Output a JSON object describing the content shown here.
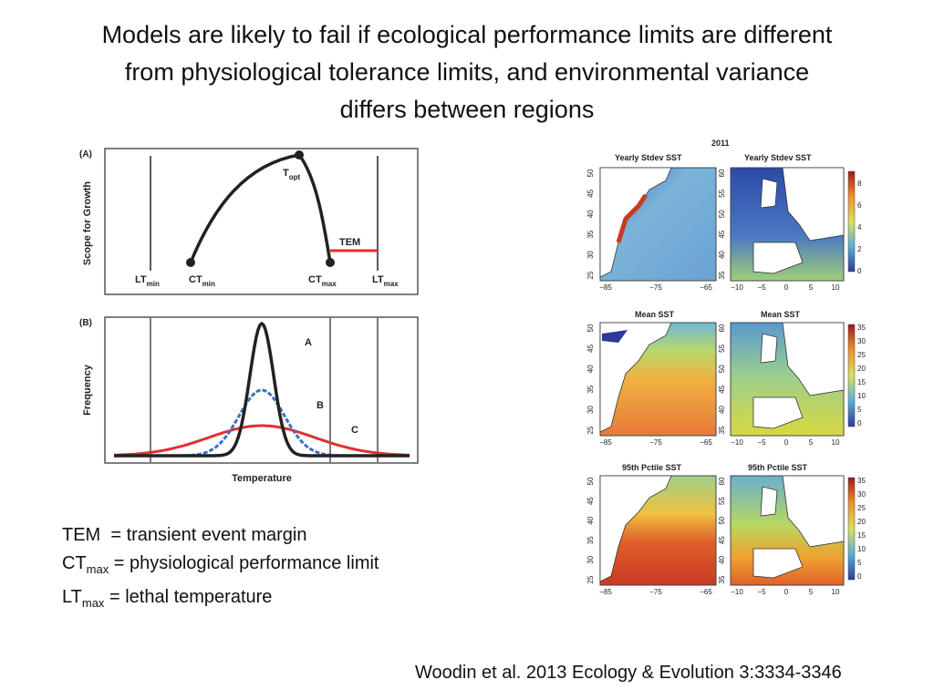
{
  "title": {
    "line1": "Models are likely to fail if ecological performance limits are different",
    "line2": "from physiological tolerance limits, and environmental variance",
    "line3": "differs between regions"
  },
  "panel_a": {
    "tag": "(A)",
    "ylabel": "Scope for Growth",
    "topt": "T",
    "topt_sub": "opt",
    "tem": "TEM",
    "lt_min": "LT",
    "lt_min_sub": "min",
    "ct_min": "CT",
    "ct_min_sub": "min",
    "ct_max": "CT",
    "ct_max_sub": "max",
    "lt_max": "LT",
    "lt_max_sub": "max"
  },
  "panel_b": {
    "tag": "(B)",
    "ylabel": "Frequency",
    "xlabel": "Temperature",
    "curve_labels": [
      "A",
      "B",
      "C"
    ],
    "colors": {
      "A": "#222222",
      "B": "#3a74c0",
      "C": "#e03030"
    }
  },
  "legend": {
    "tem_term": "TEM",
    "tem_def": "= transient event margin",
    "ct_term": "CT",
    "ct_sub": "max",
    "ct_def": "= physiological performance limit",
    "lt_term": "LT",
    "lt_sub": "max",
    "lt_def": "= lethal temperature"
  },
  "maps": {
    "year": "2011",
    "rows": [
      {
        "title_left": "Yearly Stdev SST",
        "title_right": "Yearly Stdev SST",
        "scale_ticks": [
          "8",
          "6",
          "4",
          "2",
          "0"
        ]
      },
      {
        "title_left": "Mean SST",
        "title_right": "Mean SST",
        "scale_ticks": [
          "35",
          "30",
          "25",
          "20",
          "15",
          "10",
          "5",
          "0"
        ]
      },
      {
        "title_left": "95th Pctile SST",
        "title_right": "95th Pctile SST",
        "scale_ticks": [
          "35",
          "30",
          "25",
          "20",
          "15",
          "10",
          "5",
          "0"
        ]
      }
    ],
    "left_yticks": [
      "50",
      "45",
      "40",
      "35",
      "30",
      "25"
    ],
    "right_yticks": [
      "60",
      "55",
      "50",
      "45",
      "40",
      "35"
    ],
    "left_xticks": [
      "−85",
      "−75",
      "−65"
    ],
    "right_xticks": [
      "−10",
      "−5",
      "0",
      "5",
      "10"
    ]
  },
  "citation": "Woodin et al. 2013 Ecology & Evolution 3:3334-3346"
}
